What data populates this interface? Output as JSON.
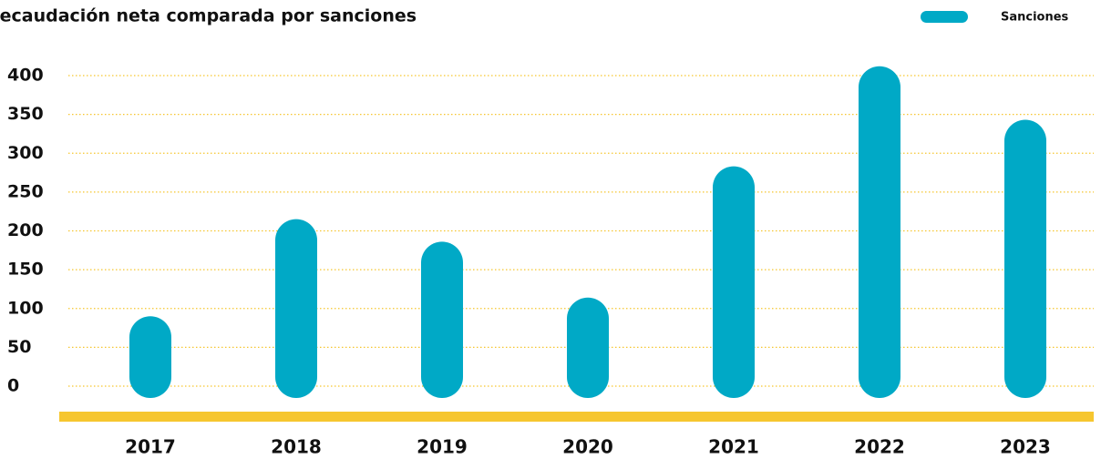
{
  "chart_data": {
    "type": "bar",
    "title": "Recaudación neta comparada por sanciones",
    "categories": [
      "2017",
      "2018",
      "2019",
      "2020",
      "2021",
      "2022",
      "2023"
    ],
    "series": [
      {
        "name": "Sanciones",
        "color": "#00a9c6",
        "values": [
          76,
          201,
          172,
          100,
          269,
          398,
          329
        ]
      }
    ],
    "ylim": [
      0,
      400
    ],
    "yticks": [
      0,
      50,
      100,
      150,
      200,
      250,
      300,
      350,
      400
    ],
    "grid": true
  }
}
